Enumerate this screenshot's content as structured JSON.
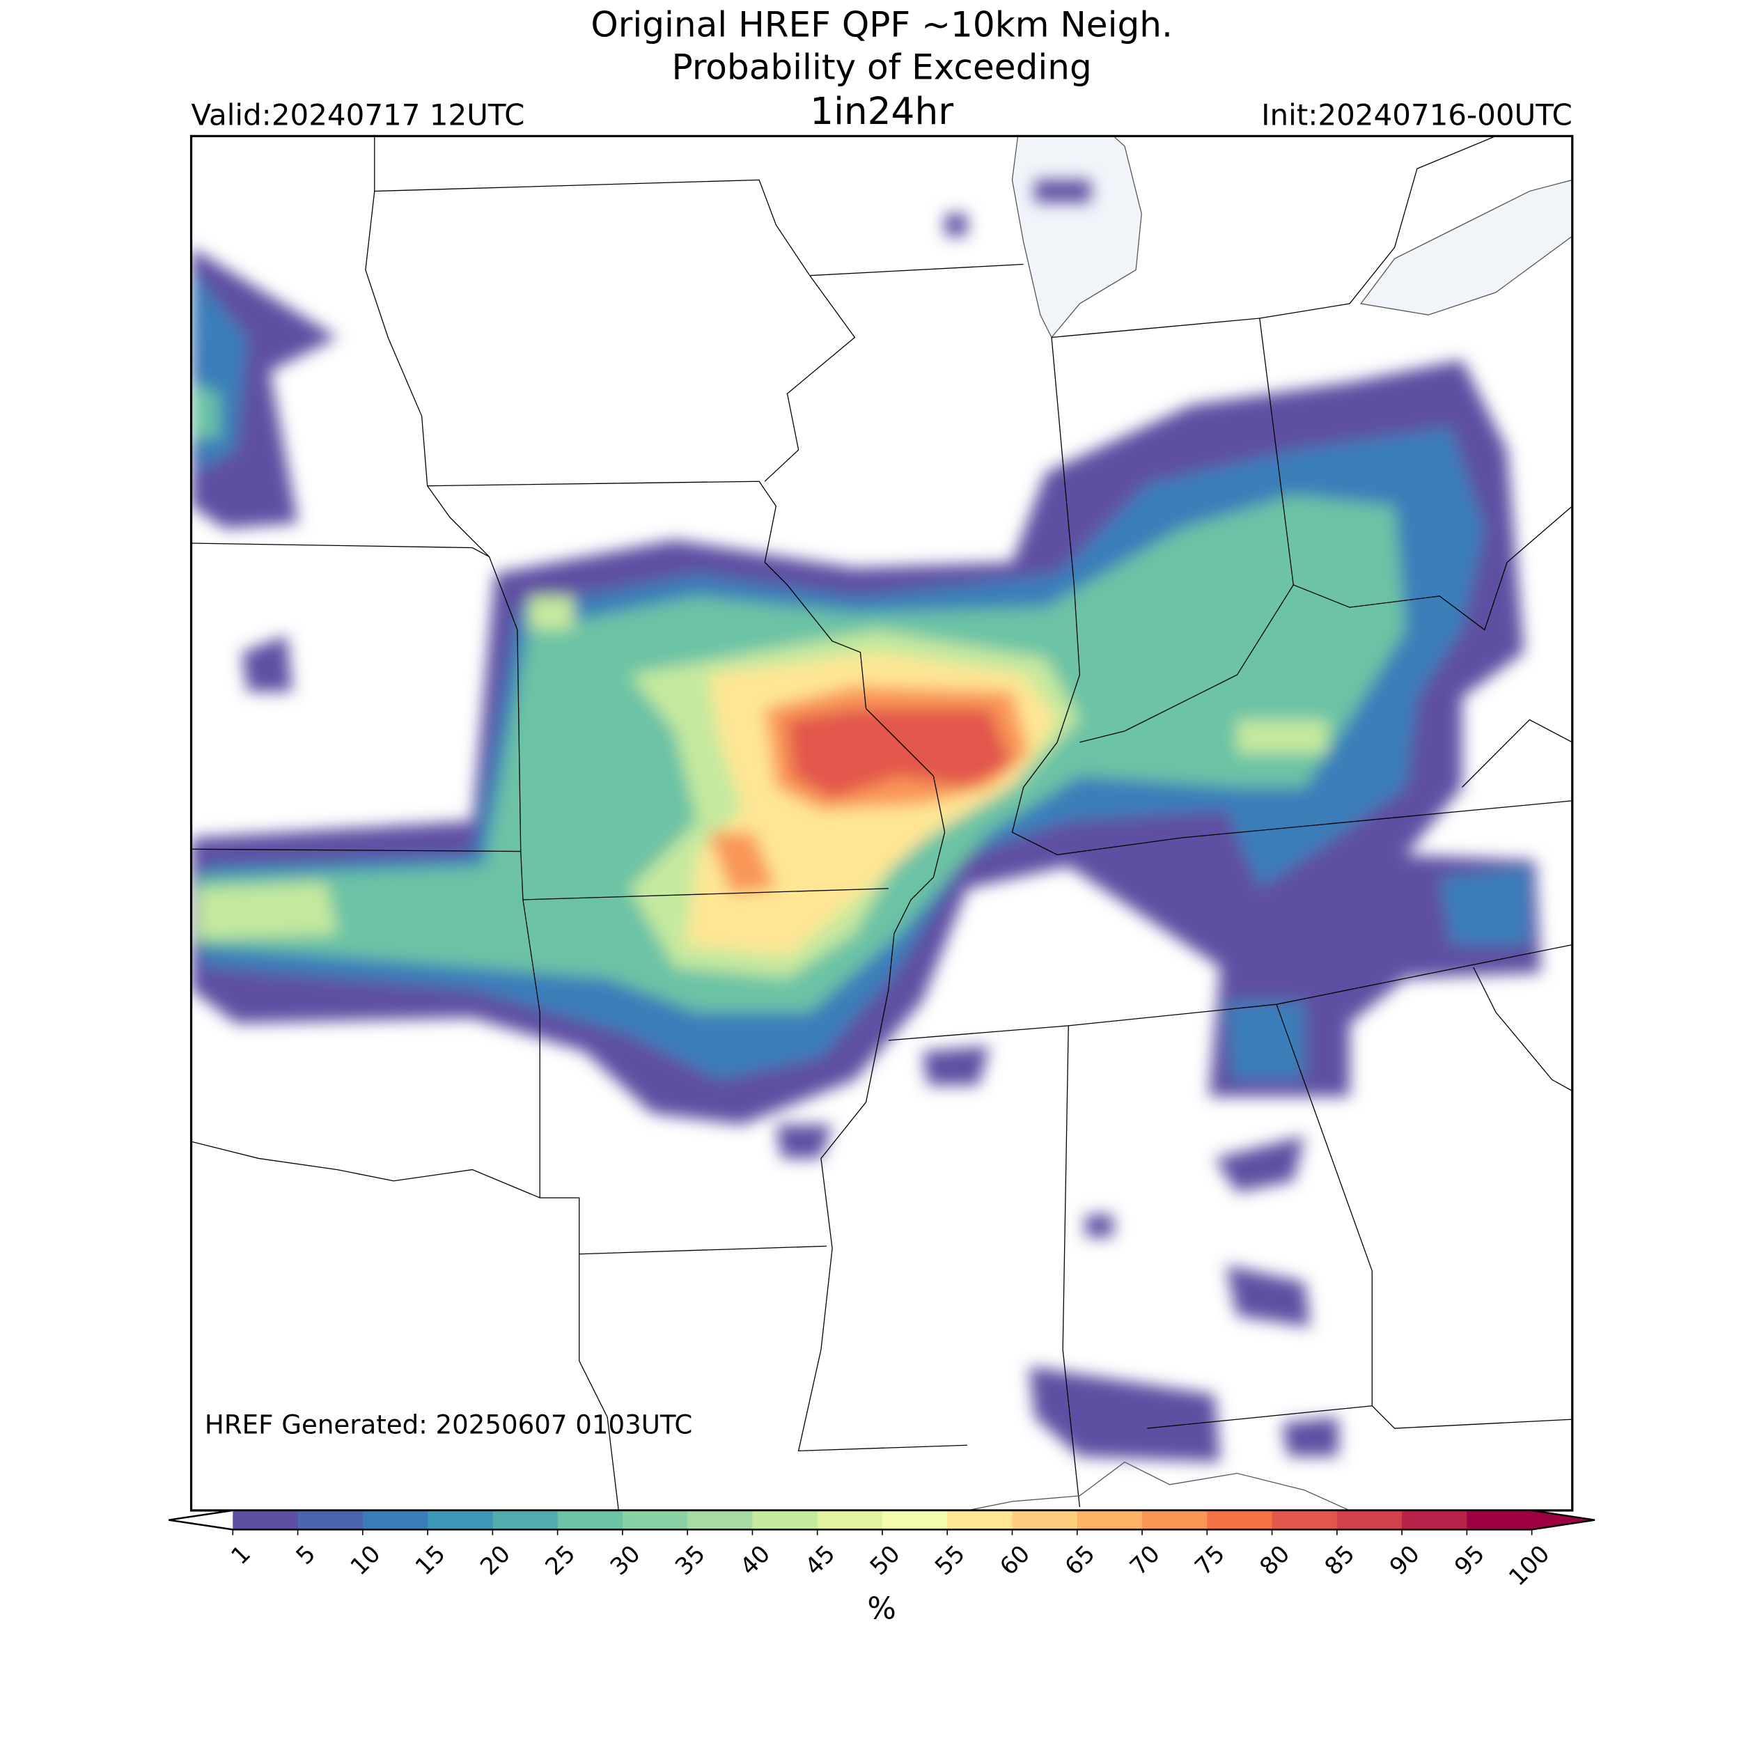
{
  "header": {
    "title_lines": [
      "Original HREF QPF ~10km Neigh.",
      "Probability of Exceeding",
      "1in24hr"
    ],
    "valid": "Valid:20240717 12UTC",
    "init": "Init:20240716-00UTC"
  },
  "footer": {
    "generated": "HREF Generated: 20250607 0103UTC"
  },
  "colorbar": {
    "label": "%",
    "ticks": [
      1,
      5,
      10,
      15,
      20,
      25,
      30,
      35,
      40,
      45,
      50,
      55,
      60,
      65,
      70,
      75,
      80,
      85,
      90,
      95,
      100
    ],
    "colors": [
      "#5e4fa2",
      "#4b65ae",
      "#3a7eb9",
      "#3b97b5",
      "#52abad",
      "#6cc3a5",
      "#89d0a4",
      "#a6dca4",
      "#c5e99e",
      "#e0f3a1",
      "#f5fbaf",
      "#fee695",
      "#fdcf7f",
      "#fdb365",
      "#f99656",
      "#f47346",
      "#e2574c",
      "#d1414c",
      "#b8224a",
      "#9e0142"
    ],
    "under_color": "#ffffff",
    "over_color": "#9e0142"
  }
}
